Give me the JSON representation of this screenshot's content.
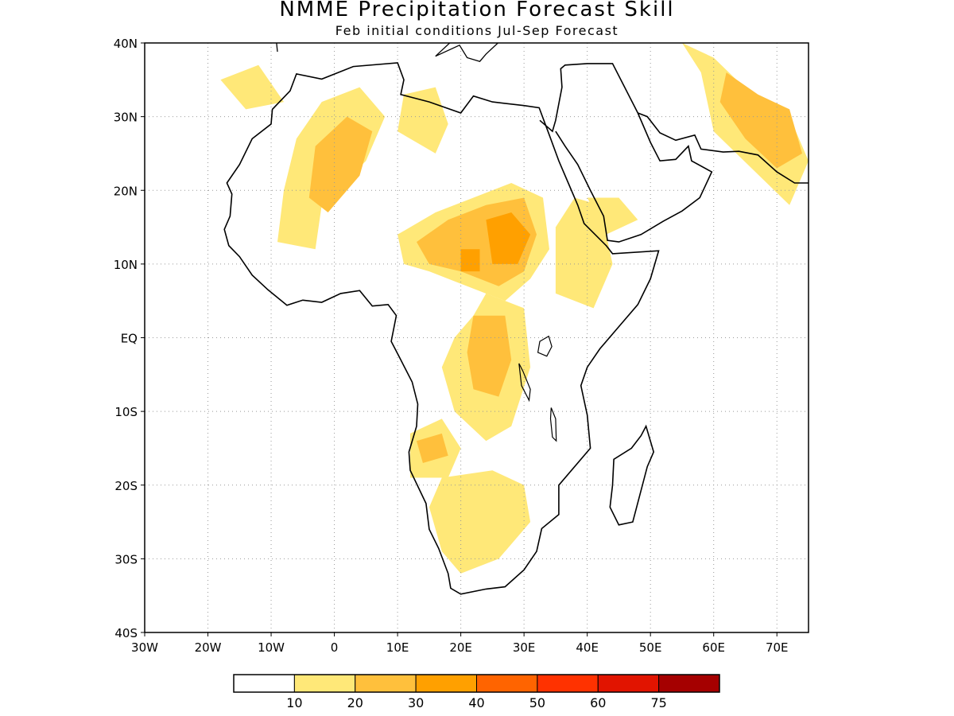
{
  "title": "NMME Precipitation Forecast Skill",
  "subtitle": "Feb initial conditions  Jul-Sep Forecast",
  "map": {
    "lon_range": [
      -30,
      75
    ],
    "lat_range": [
      -40,
      40
    ],
    "lat_ticks": [
      {
        "value": 40,
        "label": "40N"
      },
      {
        "value": 30,
        "label": "30N"
      },
      {
        "value": 20,
        "label": "20N"
      },
      {
        "value": 10,
        "label": "10N"
      },
      {
        "value": 0,
        "label": "EQ"
      },
      {
        "value": -10,
        "label": "10S"
      },
      {
        "value": -20,
        "label": "20S"
      },
      {
        "value": -30,
        "label": "30S"
      },
      {
        "value": -40,
        "label": "40S"
      }
    ],
    "lon_ticks": [
      {
        "value": -30,
        "label": "30W"
      },
      {
        "value": -20,
        "label": "20W"
      },
      {
        "value": -10,
        "label": "10W"
      },
      {
        "value": 0,
        "label": "0"
      },
      {
        "value": 10,
        "label": "10E"
      },
      {
        "value": 20,
        "label": "20E"
      },
      {
        "value": 30,
        "label": "30E"
      },
      {
        "value": 40,
        "label": "40E"
      },
      {
        "value": 50,
        "label": "50E"
      },
      {
        "value": 60,
        "label": "60E"
      },
      {
        "value": 70,
        "label": "70E"
      }
    ],
    "gridlines": "dotted",
    "coastline_color": "#000000",
    "skill_regions": [
      {
        "level": 1,
        "points": [
          [
            -2,
            18
          ],
          [
            5,
            24
          ],
          [
            8,
            30
          ],
          [
            4,
            34
          ],
          [
            -2,
            32
          ],
          [
            -6,
            27
          ],
          [
            -8,
            20
          ],
          [
            -9,
            13
          ],
          [
            -3,
            12
          ]
        ]
      },
      {
        "level": 1,
        "points": [
          [
            10,
            14
          ],
          [
            16,
            17
          ],
          [
            22,
            19
          ],
          [
            28,
            21
          ],
          [
            33,
            19
          ],
          [
            34,
            12
          ],
          [
            31,
            8
          ],
          [
            27,
            5
          ],
          [
            21,
            7
          ],
          [
            15,
            9
          ],
          [
            11,
            10
          ]
        ]
      },
      {
        "level": 1,
        "points": [
          [
            35,
            15
          ],
          [
            38,
            19
          ],
          [
            42,
            18
          ],
          [
            44,
            10
          ],
          [
            41,
            4
          ],
          [
            35,
            6
          ]
        ]
      },
      {
        "level": 1,
        "points": [
          [
            40,
            19
          ],
          [
            45,
            19
          ],
          [
            48,
            16
          ],
          [
            43,
            14
          ]
        ]
      },
      {
        "level": 1,
        "points": [
          [
            24,
            6
          ],
          [
            30,
            4
          ],
          [
            31,
            -4
          ],
          [
            28,
            -12
          ],
          [
            24,
            -14
          ],
          [
            19,
            -10
          ],
          [
            17,
            -4
          ],
          [
            19,
            0
          ],
          [
            22,
            3
          ]
        ]
      },
      {
        "level": 1,
        "points": [
          [
            12,
            -13
          ],
          [
            17,
            -11
          ],
          [
            20,
            -15
          ],
          [
            18,
            -19
          ],
          [
            12,
            -19
          ]
        ]
      },
      {
        "level": 1,
        "points": [
          [
            17,
            -19
          ],
          [
            25,
            -18
          ],
          [
            30,
            -20
          ],
          [
            31,
            -25
          ],
          [
            26,
            -30
          ],
          [
            20,
            -32
          ],
          [
            17,
            -29
          ],
          [
            15,
            -23
          ]
        ]
      },
      {
        "level": 1,
        "points": [
          [
            10,
            28
          ],
          [
            16,
            25
          ],
          [
            18,
            29
          ],
          [
            16,
            34
          ],
          [
            11,
            33
          ]
        ]
      },
      {
        "level": 1,
        "points": [
          [
            55,
            40
          ],
          [
            60,
            38
          ],
          [
            66,
            33
          ],
          [
            72,
            30
          ],
          [
            75,
            24
          ],
          [
            72,
            18
          ],
          [
            66,
            23
          ],
          [
            60,
            28
          ],
          [
            58,
            36
          ]
        ]
      },
      {
        "level": 1,
        "points": [
          [
            -18,
            35
          ],
          [
            -12,
            37
          ],
          [
            -8,
            32
          ],
          [
            -14,
            31
          ]
        ]
      },
      {
        "level": 2,
        "points": [
          [
            -1,
            17
          ],
          [
            4,
            22
          ],
          [
            6,
            28
          ],
          [
            2,
            30
          ],
          [
            -3,
            26
          ],
          [
            -4,
            19
          ]
        ]
      },
      {
        "level": 2,
        "points": [
          [
            13,
            13
          ],
          [
            18,
            16
          ],
          [
            24,
            18
          ],
          [
            30,
            19
          ],
          [
            32,
            14
          ],
          [
            30,
            9
          ],
          [
            26,
            7
          ],
          [
            20,
            9
          ],
          [
            15,
            10
          ]
        ]
      },
      {
        "level": 2,
        "points": [
          [
            22,
            3
          ],
          [
            27,
            3
          ],
          [
            28,
            -3
          ],
          [
            26,
            -8
          ],
          [
            22,
            -7
          ],
          [
            21,
            -2
          ]
        ]
      },
      {
        "level": 2,
        "points": [
          [
            13,
            -14
          ],
          [
            17,
            -13
          ],
          [
            18,
            -16
          ],
          [
            14,
            -17
          ]
        ]
      },
      {
        "level": 2,
        "points": [
          [
            62,
            36
          ],
          [
            67,
            33
          ],
          [
            72,
            31
          ],
          [
            74,
            25
          ],
          [
            70,
            23
          ],
          [
            65,
            27
          ],
          [
            61,
            32
          ]
        ]
      },
      {
        "level": 3,
        "points": [
          [
            24,
            16
          ],
          [
            28,
            17
          ],
          [
            31,
            14
          ],
          [
            29,
            10
          ],
          [
            25,
            10
          ]
        ]
      },
      {
        "level": 3,
        "points": [
          [
            20,
            12
          ],
          [
            23,
            12
          ],
          [
            23,
            9
          ],
          [
            20,
            9
          ]
        ]
      }
    ]
  },
  "colorbar": {
    "colors": [
      "#ffffff",
      "#ffe878",
      "#ffc03c",
      "#ffa000",
      "#ff6400",
      "#ff3200",
      "#e11400",
      "#a50000"
    ],
    "labels": [
      "10",
      "20",
      "30",
      "40",
      "50",
      "60",
      "75"
    ]
  }
}
